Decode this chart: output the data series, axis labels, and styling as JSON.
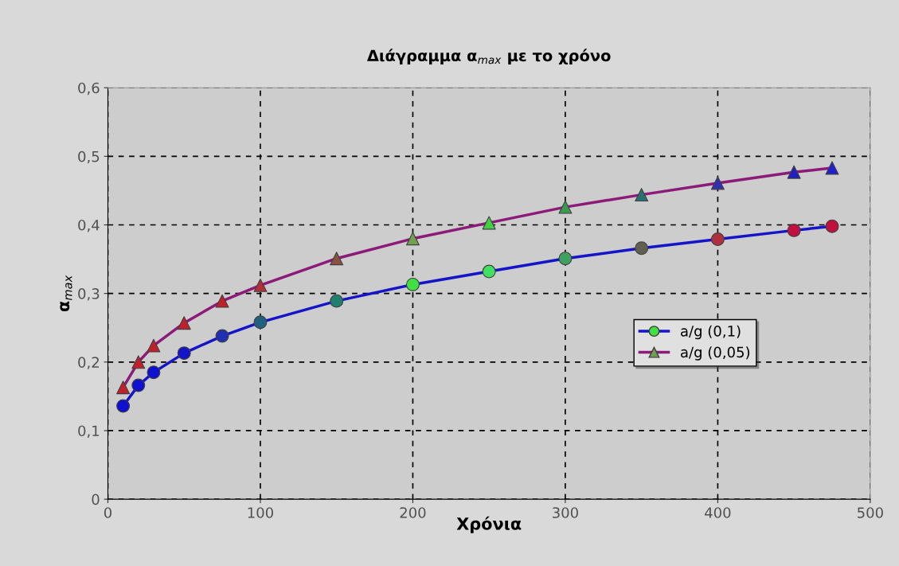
{
  "chart_data": {
    "type": "line",
    "title": "Διάγραμμα α$_{max}$ με το χρόνο",
    "xlabel": "Χρόνια",
    "ylabel": "α$_{max}$",
    "xlim": [
      0,
      500
    ],
    "xticks": [
      0,
      100,
      200,
      300,
      400,
      500
    ],
    "ylim": [
      0,
      0.6
    ],
    "yticks": [
      {
        "value": 0,
        "label": "0"
      },
      {
        "value": 0.1,
        "label": "0,1"
      },
      {
        "value": 0.2,
        "label": "0,2"
      },
      {
        "value": 0.3,
        "label": "0,3"
      },
      {
        "value": 0.4,
        "label": "0,4"
      },
      {
        "value": 0.5,
        "label": "0,5"
      },
      {
        "value": 0.6,
        "label": "0,6"
      }
    ],
    "grid": true,
    "legend": "center right",
    "series": [
      {
        "name": "a/g (0,1)",
        "color": "#1414c8",
        "marker": "circle",
        "x": [
          10,
          20,
          30,
          50,
          75,
          100,
          150,
          200,
          250,
          300,
          350,
          400,
          450,
          475
        ],
        "values": [
          0.136,
          0.166,
          0.185,
          0.213,
          0.238,
          0.258,
          0.289,
          0.313,
          0.332,
          0.351,
          0.366,
          0.379,
          0.392,
          0.398
        ],
        "colors": [
          "#1010d0",
          "#1010d0",
          "#1010d0",
          "#1515c8",
          "#2030b0",
          "#206080",
          "#208070",
          "#40e040",
          "#40e060",
          "#40a060",
          "#606050",
          "#b03040",
          "#c01040",
          "#c01040"
        ]
      },
      {
        "name": "a/g (0,05)",
        "color": "#8c1a78",
        "marker": "triangle",
        "x": [
          10,
          20,
          30,
          50,
          75,
          100,
          150,
          200,
          250,
          300,
          350,
          400,
          450,
          475
        ],
        "values": [
          0.163,
          0.2,
          0.224,
          0.257,
          0.289,
          0.312,
          0.351,
          0.38,
          0.403,
          0.426,
          0.444,
          0.461,
          0.477,
          0.483
        ],
        "colors": [
          "#c0202a",
          "#c0202a",
          "#c0202a",
          "#c0202a",
          "#c0202a",
          "#b0303a",
          "#8a5040",
          "#70a050",
          "#40d040",
          "#3a9a50",
          "#2a7070",
          "#3030b0",
          "#2020c0",
          "#2020d0"
        ]
      }
    ]
  }
}
